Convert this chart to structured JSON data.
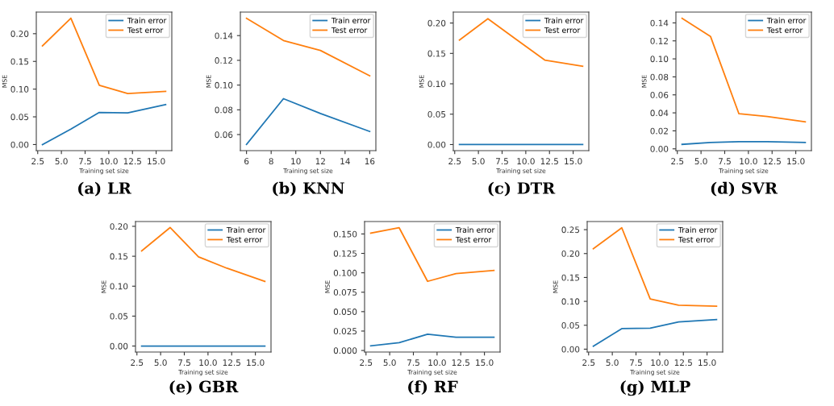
{
  "chart_data": [
    {
      "type": "line",
      "title": "(a) LR",
      "xlabel": "Training set size",
      "ylabel": "MSE",
      "x": [
        3,
        6,
        9,
        12,
        16
      ],
      "xlim": [
        2.35,
        16.65
      ],
      "xticks": [
        {
          "value": 2.5,
          "label": "2.5"
        },
        {
          "value": 5,
          "label": "5.0"
        },
        {
          "value": 7.5,
          "label": "7.5"
        },
        {
          "value": 10,
          "label": "10.0"
        },
        {
          "value": 12.5,
          "label": "12.5"
        },
        {
          "value": 15,
          "label": "15.0"
        }
      ],
      "ylim": [
        -0.011,
        0.239
      ],
      "yticks": [
        {
          "value": 0,
          "label": "0.00"
        },
        {
          "value": 0.05,
          "label": "0.05"
        },
        {
          "value": 0.1,
          "label": "0.10"
        },
        {
          "value": 0.15,
          "label": "0.15"
        },
        {
          "value": 0.2,
          "label": "0.20"
        }
      ],
      "legend": "top right",
      "series": [
        {
          "name": "Train error",
          "color": "#1f77b4",
          "values": [
            0.0,
            0.028,
            0.058,
            0.057,
            0.072
          ]
        },
        {
          "name": "Test error",
          "color": "#ff7f0e",
          "values": [
            0.178,
            0.228,
            0.107,
            0.092,
            0.096
          ]
        }
      ]
    },
    {
      "type": "line",
      "title": "(b) KNN",
      "xlabel": "Training set size",
      "ylabel": "MSE",
      "x": [
        6,
        9,
        12,
        16
      ],
      "xlim": [
        5.5,
        16.5
      ],
      "xticks": [
        6,
        8,
        10,
        12,
        14,
        16
      ],
      "ylim": [
        0.047,
        0.159
      ],
      "yticks": [
        {
          "value": 0.06,
          "label": "0.06"
        },
        {
          "value": 0.08,
          "label": "0.08"
        },
        {
          "value": 0.1,
          "label": "0.10"
        },
        {
          "value": 0.12,
          "label": "0.12"
        },
        {
          "value": 0.14,
          "label": "0.14"
        }
      ],
      "legend": "top right",
      "series": [
        {
          "name": "Train error",
          "color": "#1f77b4",
          "values": [
            0.052,
            0.089,
            0.077,
            0.0625
          ]
        },
        {
          "name": "Test error",
          "color": "#ff7f0e",
          "values": [
            0.154,
            0.136,
            0.128,
            0.1075
          ]
        }
      ]
    },
    {
      "type": "line",
      "title": "(c) DTR",
      "xlabel": "Training set size",
      "ylabel": "MSE",
      "x": [
        3,
        6,
        9,
        12,
        16
      ],
      "xlim": [
        2.35,
        16.65
      ],
      "xticks": [
        {
          "value": 2.5,
          "label": "2.5"
        },
        {
          "value": 5,
          "label": "5.0"
        },
        {
          "value": 7.5,
          "label": "7.5"
        },
        {
          "value": 10,
          "label": "10.0"
        },
        {
          "value": 12.5,
          "label": "12.5"
        },
        {
          "value": 15,
          "label": "15.0"
        }
      ],
      "ylim": [
        -0.01,
        0.218
      ],
      "yticks": [
        {
          "value": 0,
          "label": "0.00"
        },
        {
          "value": 0.05,
          "label": "0.05"
        },
        {
          "value": 0.1,
          "label": "0.10"
        },
        {
          "value": 0.15,
          "label": "0.15"
        },
        {
          "value": 0.2,
          "label": "0.20"
        }
      ],
      "legend": "top right",
      "series": [
        {
          "name": "Train error",
          "color": "#1f77b4",
          "values": [
            0.0,
            0.0,
            0.0,
            0.0,
            0.0
          ]
        },
        {
          "name": "Test error",
          "color": "#ff7f0e",
          "values": [
            0.172,
            0.207,
            0.173,
            0.139,
            0.129
          ]
        }
      ]
    },
    {
      "type": "line",
      "title": "(d) SVR",
      "xlabel": "Training set size",
      "ylabel": "MSE",
      "x": [
        3,
        6,
        9,
        12,
        16
      ],
      "xlim": [
        2.35,
        16.65
      ],
      "xticks": [
        {
          "value": 2.5,
          "label": "2.5"
        },
        {
          "value": 5,
          "label": "5.0"
        },
        {
          "value": 7.5,
          "label": "7.5"
        },
        {
          "value": 10,
          "label": "10.0"
        },
        {
          "value": 12.5,
          "label": "12.5"
        },
        {
          "value": 15,
          "label": "15.0"
        }
      ],
      "ylim": [
        -0.002,
        0.152
      ],
      "yticks": [
        {
          "value": 0,
          "label": "0.00"
        },
        {
          "value": 0.02,
          "label": "0.02"
        },
        {
          "value": 0.04,
          "label": "0.04"
        },
        {
          "value": 0.06,
          "label": "0.06"
        },
        {
          "value": 0.08,
          "label": "0.08"
        },
        {
          "value": 0.1,
          "label": "0.10"
        },
        {
          "value": 0.12,
          "label": "0.12"
        },
        {
          "value": 0.14,
          "label": "0.14"
        }
      ],
      "legend": "top right",
      "series": [
        {
          "name": "Train error",
          "color": "#1f77b4",
          "values": [
            0.005,
            0.007,
            0.008,
            0.008,
            0.007
          ]
        },
        {
          "name": "Test error",
          "color": "#ff7f0e",
          "values": [
            0.145,
            0.125,
            0.039,
            0.036,
            0.03
          ]
        }
      ]
    },
    {
      "type": "line",
      "title": "(e) GBR",
      "xlabel": "Training set size",
      "ylabel": "MSE",
      "x": [
        3,
        6,
        9,
        12,
        16
      ],
      "xlim": [
        2.35,
        16.65
      ],
      "xticks": [
        {
          "value": 2.5,
          "label": "2.5"
        },
        {
          "value": 5,
          "label": "5.0"
        },
        {
          "value": 7.5,
          "label": "7.5"
        },
        {
          "value": 10,
          "label": "10.0"
        },
        {
          "value": 12.5,
          "label": "12.5"
        },
        {
          "value": 15,
          "label": "15.0"
        }
      ],
      "ylim": [
        -0.01,
        0.208
      ],
      "yticks": [
        {
          "value": 0,
          "label": "0.00"
        },
        {
          "value": 0.05,
          "label": "0.05"
        },
        {
          "value": 0.1,
          "label": "0.10"
        },
        {
          "value": 0.15,
          "label": "0.15"
        },
        {
          "value": 0.2,
          "label": "0.20"
        }
      ],
      "legend": "top right",
      "series": [
        {
          "name": "Train error",
          "color": "#1f77b4",
          "values": [
            0.0,
            0.0,
            0.0,
            0.0,
            0.0
          ]
        },
        {
          "name": "Test error",
          "color": "#ff7f0e",
          "values": [
            0.159,
            0.198,
            0.149,
            0.13,
            0.108
          ]
        }
      ]
    },
    {
      "type": "line",
      "title": "(f) RF",
      "xlabel": "Training set size",
      "ylabel": "MSE",
      "x": [
        3,
        6,
        9,
        12,
        16
      ],
      "xlim": [
        2.35,
        16.65
      ],
      "xticks": [
        {
          "value": 2.5,
          "label": "2.5"
        },
        {
          "value": 5,
          "label": "5.0"
        },
        {
          "value": 7.5,
          "label": "7.5"
        },
        {
          "value": 10,
          "label": "10.0"
        },
        {
          "value": 12.5,
          "label": "12.5"
        },
        {
          "value": 15,
          "label": "15.0"
        }
      ],
      "ylim": [
        -0.002,
        0.166
      ],
      "yticks": [
        {
          "value": 0,
          "label": "0.000"
        },
        {
          "value": 0.025,
          "label": "0.025"
        },
        {
          "value": 0.05,
          "label": "0.050"
        },
        {
          "value": 0.075,
          "label": "0.075"
        },
        {
          "value": 0.1,
          "label": "0.100"
        },
        {
          "value": 0.125,
          "label": "0.125"
        },
        {
          "value": 0.15,
          "label": "0.150"
        }
      ],
      "legend": "top right",
      "series": [
        {
          "name": "Train error",
          "color": "#1f77b4",
          "values": [
            0.006,
            0.01,
            0.021,
            0.017,
            0.017
          ]
        },
        {
          "name": "Test error",
          "color": "#ff7f0e",
          "values": [
            0.151,
            0.158,
            0.089,
            0.099,
            0.103
          ]
        }
      ]
    },
    {
      "type": "line",
      "title": "(g) MLP",
      "xlabel": "Training set size",
      "ylabel": "MSE",
      "x": [
        3,
        6,
        9,
        12,
        16
      ],
      "xlim": [
        2.35,
        16.65
      ],
      "xticks": [
        {
          "value": 2.5,
          "label": "2.5"
        },
        {
          "value": 5,
          "label": "5.0"
        },
        {
          "value": 7.5,
          "label": "7.5"
        },
        {
          "value": 10,
          "label": "10.0"
        },
        {
          "value": 12.5,
          "label": "12.5"
        },
        {
          "value": 15,
          "label": "15.0"
        }
      ],
      "ylim": [
        -0.006,
        0.267
      ],
      "yticks": [
        {
          "value": 0,
          "label": "0.00"
        },
        {
          "value": 0.05,
          "label": "0.05"
        },
        {
          "value": 0.1,
          "label": "0.10"
        },
        {
          "value": 0.15,
          "label": "0.15"
        },
        {
          "value": 0.2,
          "label": "0.20"
        },
        {
          "value": 0.25,
          "label": "0.25"
        }
      ],
      "legend": "top right",
      "series": [
        {
          "name": "Train error",
          "color": "#1f77b4",
          "values": [
            0.006,
            0.043,
            0.044,
            0.057,
            0.062
          ]
        },
        {
          "name": "Test error",
          "color": "#ff7f0e",
          "values": [
            0.21,
            0.254,
            0.105,
            0.092,
            0.09
          ]
        }
      ]
    }
  ]
}
